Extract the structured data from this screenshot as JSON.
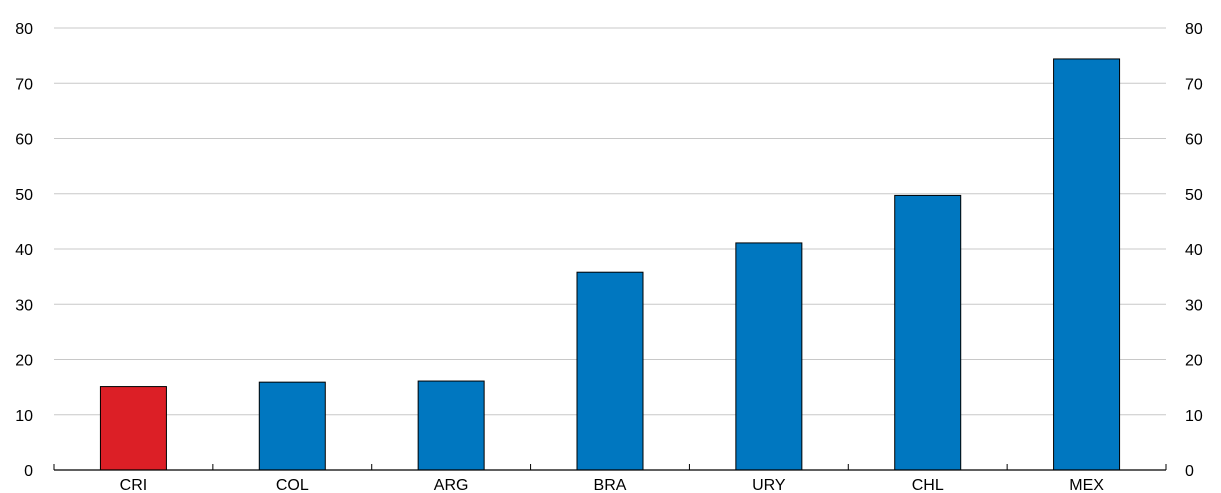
{
  "chart_data": {
    "type": "bar",
    "categories": [
      "CRI",
      "COL",
      "ARG",
      "BRA",
      "URY",
      "CHL",
      "MEX"
    ],
    "values": [
      15.1,
      15.9,
      16.1,
      35.8,
      41.1,
      49.7,
      74.4
    ],
    "highlight": "CRI",
    "colors": {
      "default": "#0077c0",
      "highlight": "#dc1f26",
      "grid": "#c8c8c8",
      "axis": "#000000"
    },
    "ylim": [
      0,
      80
    ],
    "yticks": [
      0,
      10,
      20,
      30,
      40,
      50,
      60,
      70,
      80
    ],
    "grid": true,
    "secondary_y_axis": true,
    "title": "",
    "xlabel": "",
    "ylabel": ""
  }
}
